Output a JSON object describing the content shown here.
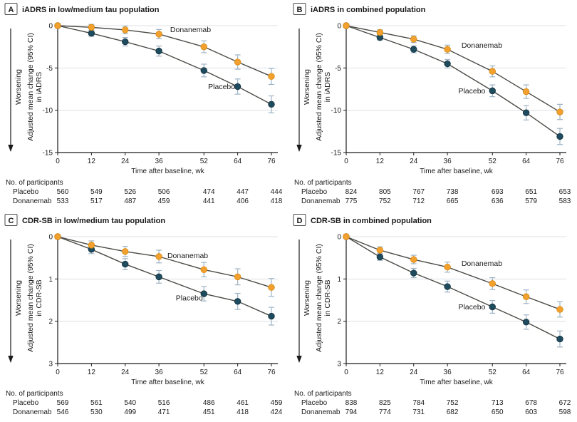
{
  "shared": {
    "x_axis_title": "Time after baseline, wk",
    "weeks": [
      0,
      12,
      24,
      36,
      52,
      64,
      76
    ],
    "participants_heading": "No. of participants",
    "worsening_label": "Worsening",
    "ylabel_line1": "Adjusted mean change (95% CI)",
    "colors": {
      "donanemab": "#F2A12E",
      "donanemab_stroke": "#D8880F",
      "placebo": "#1F4B5E",
      "placebo_stroke": "#12303E",
      "line": "#4A4A45",
      "error_bar": "#9FB3C4",
      "gridline": "#DCE1E4",
      "axis": "#1A1A1A"
    }
  },
  "chart_data": [
    {
      "type": "line",
      "panel_letter": "A",
      "title": "iADRS in low/medium tau population",
      "ylabel_line2": "in iADRS",
      "xlabel": "Time after baseline, wk",
      "x": [
        0,
        12,
        24,
        36,
        52,
        64,
        76
      ],
      "ylim": [
        0,
        -15
      ],
      "yticks": [
        0,
        -5,
        -10,
        -15
      ],
      "grid": true,
      "series": [
        {
          "name": "Donanemab",
          "color_key": "donanemab",
          "values": [
            0,
            -0.2,
            -0.5,
            -1.0,
            -2.5,
            -4.3,
            -6.0
          ],
          "ci": [
            0,
            0.35,
            0.45,
            0.55,
            0.7,
            0.85,
            0.95
          ],
          "label": {
            "wk": 40,
            "val": -0.45,
            "anchor": "start"
          }
        },
        {
          "name": "Placebo",
          "color_key": "placebo",
          "values": [
            0,
            -0.9,
            -1.9,
            -3.0,
            -5.3,
            -7.2,
            -9.3
          ],
          "ci": [
            0,
            0.35,
            0.5,
            0.6,
            0.75,
            0.9,
            1.0
          ],
          "label": {
            "wk": 53.5,
            "val": -7.2,
            "anchor": "start"
          }
        }
      ],
      "participants": [
        {
          "label": "Placebo",
          "counts": [
            560,
            549,
            526,
            506,
            474,
            447,
            444
          ]
        },
        {
          "label": "Donanemab",
          "counts": [
            533,
            517,
            487,
            459,
            441,
            406,
            418
          ]
        }
      ]
    },
    {
      "type": "line",
      "panel_letter": "B",
      "title": "iADRS in combined population",
      "ylabel_line2": "in iADRS",
      "xlabel": "Time after baseline, wk",
      "x": [
        0,
        12,
        24,
        36,
        52,
        64,
        76
      ],
      "ylim": [
        0,
        -15
      ],
      "yticks": [
        0,
        -5,
        -10,
        -15
      ],
      "grid": true,
      "series": [
        {
          "name": "Donanemab",
          "color_key": "donanemab",
          "values": [
            0,
            -0.8,
            -1.6,
            -2.8,
            -5.4,
            -7.8,
            -10.2
          ],
          "ci": [
            0,
            0.3,
            0.4,
            0.5,
            0.65,
            0.8,
            0.9
          ],
          "label": {
            "wk": 41,
            "val": -2.3,
            "anchor": "start"
          }
        },
        {
          "name": "Placebo",
          "color_key": "placebo",
          "values": [
            0,
            -1.4,
            -2.8,
            -4.5,
            -7.7,
            -10.3,
            -13.1
          ],
          "ci": [
            0,
            0.3,
            0.4,
            0.5,
            0.7,
            0.85,
            0.95
          ],
          "label": {
            "wk": 49.5,
            "val": -7.7,
            "anchor": "end"
          }
        }
      ],
      "participants": [
        {
          "label": "Placebo",
          "counts": [
            824,
            805,
            767,
            738,
            693,
            651,
            653
          ]
        },
        {
          "label": "Donanemab",
          "counts": [
            775,
            752,
            712,
            665,
            636,
            579,
            583
          ]
        }
      ]
    },
    {
      "type": "line",
      "panel_letter": "C",
      "title": "CDR-SB in low/medium tau population",
      "ylabel_line2": "in CDR-SB",
      "xlabel": "Time after baseline, wk",
      "x": [
        0,
        12,
        24,
        36,
        52,
        64,
        76
      ],
      "ylim": [
        0,
        3
      ],
      "yticks": [
        0,
        1,
        2,
        3
      ],
      "grid": true,
      "series": [
        {
          "name": "Donanemab",
          "color_key": "donanemab",
          "values": [
            0,
            0.2,
            0.35,
            0.47,
            0.78,
            0.95,
            1.2
          ],
          "ci": [
            0,
            0.1,
            0.12,
            0.15,
            0.17,
            0.19,
            0.21
          ],
          "label": {
            "wk": 39,
            "val": 0.45,
            "anchor": "start"
          }
        },
        {
          "name": "Placebo",
          "color_key": "placebo",
          "values": [
            0,
            0.3,
            0.65,
            0.95,
            1.35,
            1.53,
            1.88
          ],
          "ci": [
            0,
            0.1,
            0.13,
            0.15,
            0.17,
            0.19,
            0.21
          ],
          "label": {
            "wk": 42,
            "val": 1.45,
            "anchor": "start"
          }
        }
      ],
      "participants": [
        {
          "label": "Placebo",
          "counts": [
            569,
            561,
            540,
            516,
            486,
            461,
            459
          ]
        },
        {
          "label": "Donanemab",
          "counts": [
            546,
            530,
            499,
            471,
            451,
            418,
            424
          ]
        }
      ]
    },
    {
      "type": "line",
      "panel_letter": "D",
      "title": "CDR-SB in combined population",
      "ylabel_line2": "in CDR-SB",
      "xlabel": "Time after baseline, wk",
      "x": [
        0,
        12,
        24,
        36,
        52,
        64,
        76
      ],
      "ylim": [
        0,
        3
      ],
      "yticks": [
        0,
        1,
        2,
        3
      ],
      "grid": true,
      "series": [
        {
          "name": "Donanemab",
          "color_key": "donanemab",
          "values": [
            0,
            0.32,
            0.54,
            0.72,
            1.11,
            1.42,
            1.72
          ],
          "ci": [
            0,
            0.08,
            0.1,
            0.12,
            0.14,
            0.16,
            0.18
          ],
          "label": {
            "wk": 41,
            "val": 0.63,
            "anchor": "start"
          }
        },
        {
          "name": "Placebo",
          "color_key": "placebo",
          "values": [
            0,
            0.48,
            0.86,
            1.18,
            1.66,
            2.02,
            2.42
          ],
          "ci": [
            0,
            0.08,
            0.11,
            0.13,
            0.15,
            0.17,
            0.19
          ],
          "label": {
            "wk": 49.5,
            "val": 1.66,
            "anchor": "end"
          }
        }
      ],
      "participants": [
        {
          "label": "Placebo",
          "counts": [
            838,
            825,
            784,
            752,
            713,
            678,
            672
          ]
        },
        {
          "label": "Donanemab",
          "counts": [
            794,
            774,
            731,
            682,
            650,
            603,
            598
          ]
        }
      ]
    }
  ]
}
